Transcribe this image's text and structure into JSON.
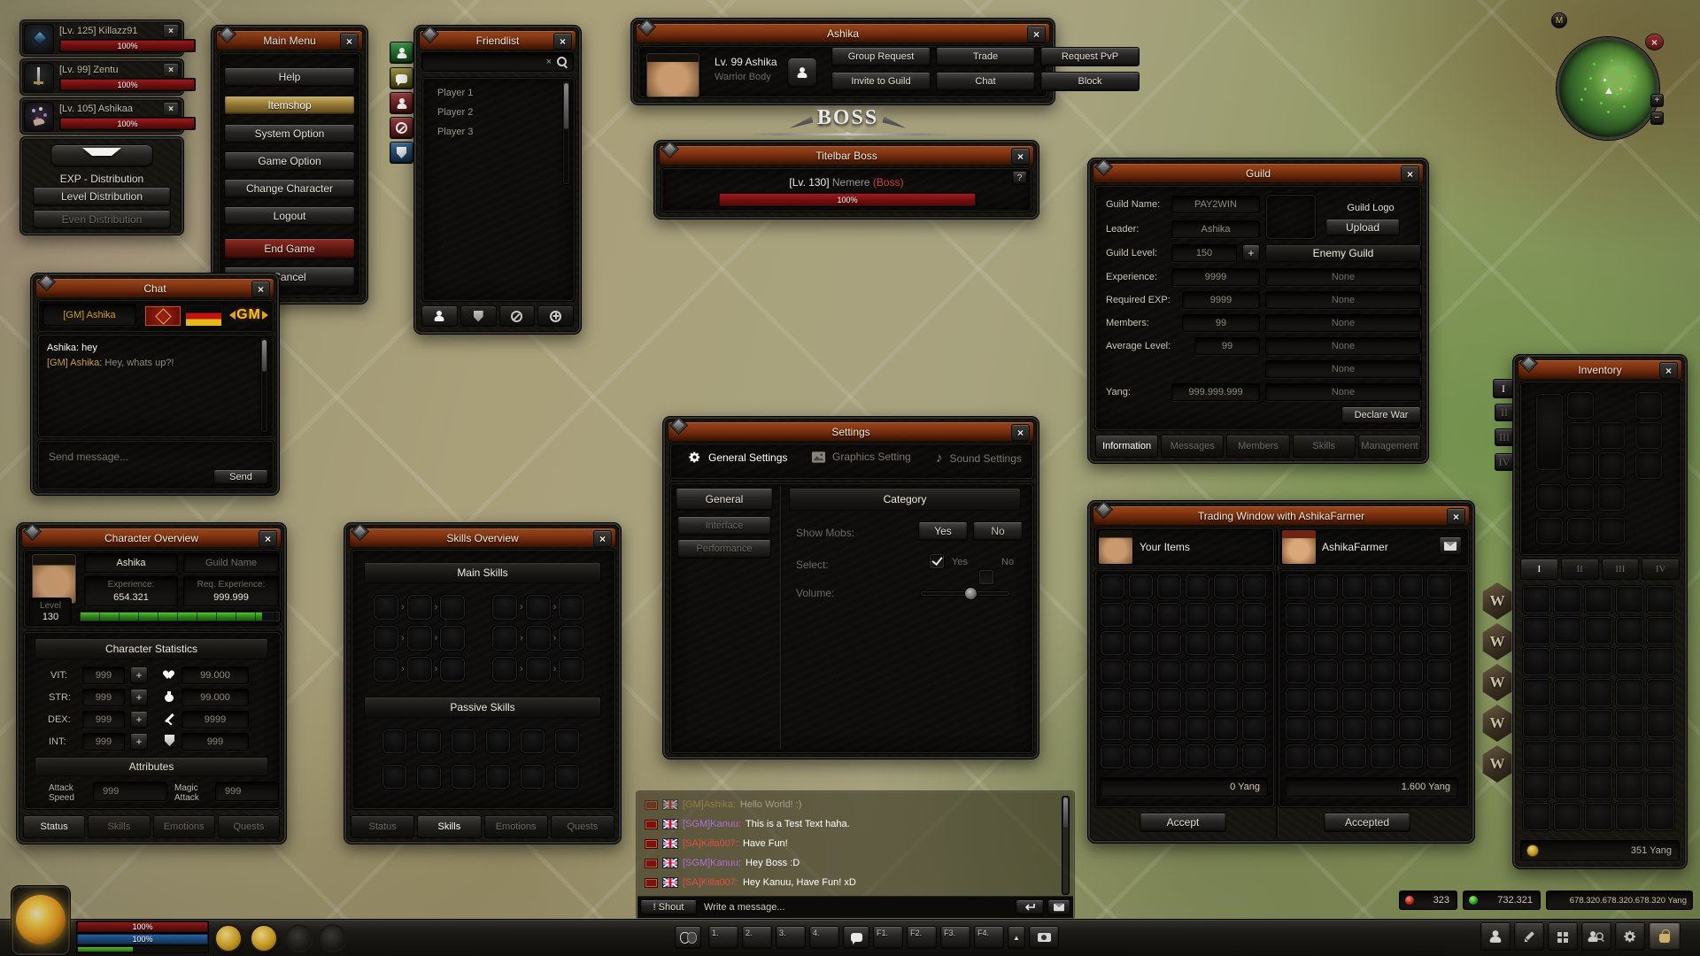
{
  "colors": {
    "titlebar": "#7d3110",
    "hp_red": "#a11b1b",
    "mp_blue": "#1d4f8f",
    "xp_green": "#2f9e22",
    "gold_text": "#d4a017",
    "sgm_purple": "#b070d8",
    "sa_red": "#e05045",
    "window_bg": "#16140f"
  },
  "icons": {
    "close": "×",
    "plus": "+",
    "minus": "−",
    "question": "?",
    "arrow": "›",
    "music": "♪",
    "up": "▲",
    "search_clear": "×"
  },
  "party": {
    "members": [
      {
        "name": "[Lv. 125] Killazz91",
        "hp": "100%"
      },
      {
        "name": "[Lv. 99] Zentu",
        "hp": "100%"
      },
      {
        "name": "[Lv. 105] Ashikaa",
        "hp": "100%"
      }
    ],
    "exp": {
      "title": "EXP - Distribution",
      "level_btn": "Level Distribution",
      "even_btn": "Even Distribution"
    }
  },
  "main_menu": {
    "title": "Main Menu",
    "items": [
      "Help",
      "Itemshop",
      "System Option",
      "Game Option",
      "Change Character",
      "Logout",
      "End Game",
      "Cancel"
    ]
  },
  "friendlist": {
    "title": "Friendlist",
    "players": [
      "Player 1",
      "Player 2",
      "Player 3"
    ]
  },
  "target": {
    "title": "Ashika",
    "name": "Lv. 99 Ashika",
    "class": "Warrior Body",
    "buttons": [
      "Group Request",
      "Trade",
      "Request PvP",
      "Invite to Guild",
      "Chat",
      "Block"
    ]
  },
  "boss": {
    "banner": "BOSS",
    "title": "Titelbar Boss",
    "level": "[Lv. 130]",
    "name": "Nemere",
    "tag": "(Boss)",
    "hp": "100%"
  },
  "chat": {
    "title": "Chat",
    "whisper_name": "[GM] Ashika",
    "gm_logo": "GM",
    "messages": [
      {
        "name": "Ashika:",
        "text": "hey"
      },
      {
        "name": "[GM] Ashika:",
        "text": "Hey, whats up?!"
      }
    ],
    "placeholder": "Send message...",
    "send": "Send"
  },
  "guild": {
    "title": "Guild",
    "rows": [
      {
        "label": "Guild Name:",
        "value": "PAY2WIN"
      },
      {
        "label": "Leader:",
        "value": "Ashika"
      },
      {
        "label": "Guild Level:",
        "value": "150"
      },
      {
        "label": "Experience:",
        "value": "9999"
      },
      {
        "label": "Required EXP:",
        "value": "9999"
      },
      {
        "label": "Members:",
        "value": "99"
      },
      {
        "label": "Average Level:",
        "value": "99"
      },
      {
        "label": "Yang:",
        "value": "999.999.999"
      }
    ],
    "logo_label": "Guild Logo",
    "upload": "Upload",
    "enemy": "Enemy Guild",
    "none": "None",
    "declare": "Declare War",
    "tabs": [
      "Information",
      "Messages",
      "Members",
      "Skills",
      "Management"
    ]
  },
  "character": {
    "title": "Character Overview",
    "name": "Ashika",
    "guild_placeholder": "Guild Name",
    "exp_label": "Experience:",
    "exp_value": "654.321",
    "req_label": "Req. Experience:",
    "req_value": "999.999",
    "level_label": "Level",
    "level_value": "130",
    "stats_header": "Character Statistics",
    "stats": [
      {
        "label": "VIT:",
        "value": "999",
        "stat": "99.000"
      },
      {
        "label": "STR:",
        "value": "999",
        "stat": "99.000"
      },
      {
        "label": "DEX:",
        "value": "999",
        "stat": "9999"
      },
      {
        "label": "INT:",
        "value": "999",
        "stat": "999"
      }
    ],
    "attributes_header": "Attributes",
    "attack_speed_label": "Attack Speed",
    "attack_speed": "999",
    "magic_attack_label": "Magic Attack",
    "magic_attack": "999",
    "tabs": [
      "Status",
      "Skills",
      "Emotions",
      "Quests"
    ]
  },
  "skills": {
    "title": "Skills Overview",
    "main_header": "Main Skills",
    "passive_header": "Passive Skills",
    "tabs": [
      "Status",
      "Skills",
      "Emotions",
      "Quests"
    ]
  },
  "settings": {
    "title": "Settings",
    "tabs": [
      "General Settings",
      "Graphics Setting",
      "Sound Settings"
    ],
    "side": [
      "General",
      "Interface",
      "Performance"
    ],
    "category": "Category",
    "show_mobs": "Show Mobs:",
    "yes": "Yes",
    "no": "No",
    "select": "Select:",
    "select_yes": "Yes",
    "select_no": "No",
    "volume": "Volume:"
  },
  "trade": {
    "title": "Trading Window with AshikaFarmer",
    "left_label": "Your Items",
    "right_label": "AshikaFarmer",
    "left_yang": "0 Yang",
    "right_yang": "1.600 Yang",
    "accept": "Accept",
    "accepted": "Accepted"
  },
  "inventory": {
    "title": "Inventory",
    "page_tabs": [
      "I",
      "II",
      "III",
      "IV"
    ],
    "w_badge": "W",
    "yang": "351 Yang"
  },
  "bottom_chat": {
    "messages": [
      {
        "name": "[GM]Ashika:",
        "text": "Hello World! :)"
      },
      {
        "name": "[SGM]Kanuu:",
        "text": "This is a Test Text haha."
      },
      {
        "name": "[SA]Killa007:",
        "text": "Have Fun!"
      },
      {
        "name": "[SGM]Kanuu:",
        "text": "Hey Boss :D"
      },
      {
        "name": "[SA]Killa007:",
        "text": "Hey Kanuu, Have Fun! xD"
      }
    ],
    "shout": "! Shout",
    "placeholder": "Write a message..."
  },
  "hud": {
    "hp": "100%",
    "mp": "100%",
    "quickslots": [
      "1.",
      "2.",
      "3.",
      "4."
    ],
    "fkeys": [
      "F1.",
      "F2.",
      "F3.",
      "F4."
    ],
    "minimap_label": "M",
    "currency_red": "323",
    "currency_green": "732.321",
    "currency_yang": "678.320.678.320.678.320 Yang"
  }
}
